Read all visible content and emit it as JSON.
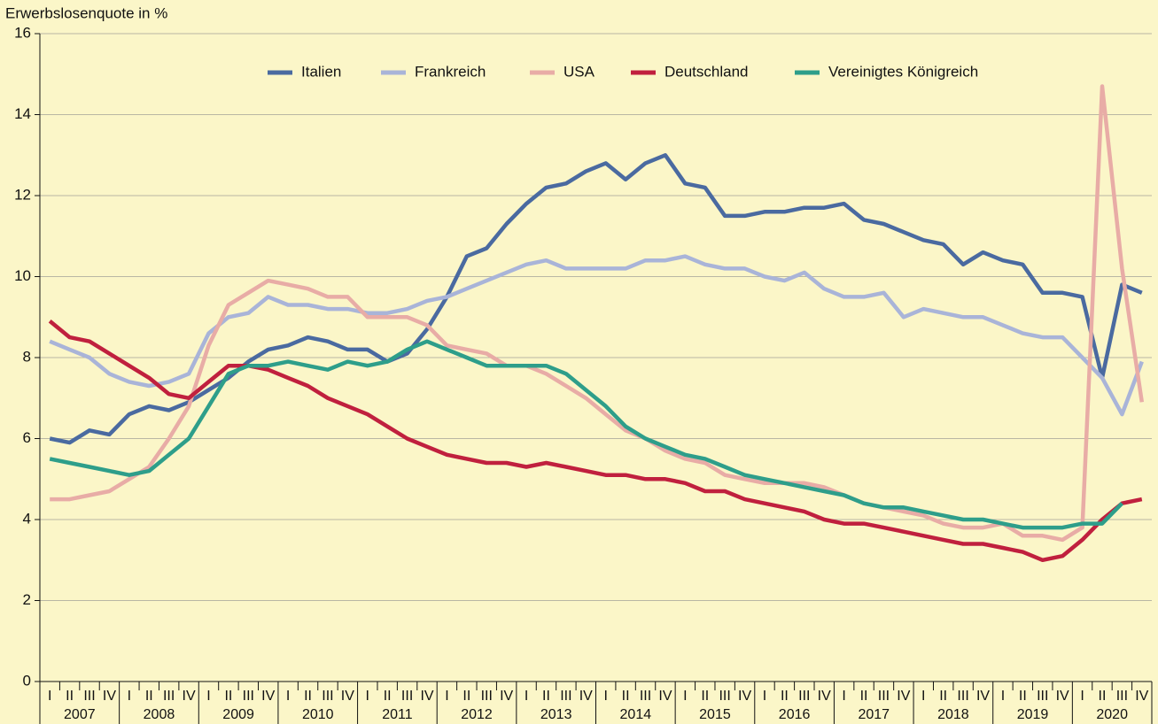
{
  "chart_data": {
    "type": "line",
    "y_label": "Erwerbslosenquote in %",
    "categories": [
      "I",
      "II",
      "III",
      "IV",
      "I",
      "II",
      "III",
      "IV",
      "I",
      "II",
      "III",
      "IV",
      "I",
      "II",
      "III",
      "IV",
      "I",
      "II",
      "III",
      "IV",
      "I",
      "II",
      "III",
      "IV",
      "I",
      "II",
      "III",
      "IV",
      "I",
      "II",
      "III",
      "IV",
      "I",
      "II",
      "III",
      "IV",
      "I",
      "II",
      "III",
      "IV",
      "I",
      "II",
      "III",
      "IV",
      "I",
      "II",
      "III",
      "IV",
      "I",
      "II",
      "III",
      "IV",
      "I",
      "II",
      "III",
      "IV"
    ],
    "years": [
      "2007",
      "2008",
      "2009",
      "2010",
      "2011",
      "2012",
      "2013",
      "2014",
      "2015",
      "2016",
      "2017",
      "2018",
      "2019",
      "2020"
    ],
    "ylim": [
      0,
      16
    ],
    "yticks": [
      0,
      2,
      4,
      6,
      8,
      10,
      12,
      14,
      16
    ],
    "grid": true,
    "series": [
      {
        "name": "Italien",
        "color": "#4a6aa0",
        "values": [
          6.0,
          5.9,
          6.2,
          6.1,
          6.6,
          6.8,
          6.7,
          6.9,
          7.2,
          7.5,
          7.9,
          8.2,
          8.3,
          8.5,
          8.4,
          8.2,
          8.2,
          7.9,
          8.1,
          8.7,
          9.5,
          10.5,
          10.7,
          11.3,
          11.8,
          12.2,
          12.3,
          12.6,
          12.8,
          12.4,
          12.8,
          13.0,
          12.3,
          12.2,
          11.5,
          11.5,
          11.6,
          11.6,
          11.7,
          11.7,
          11.8,
          11.4,
          11.3,
          11.1,
          10.9,
          10.8,
          10.3,
          10.6,
          10.4,
          10.3,
          9.6,
          9.6,
          9.5,
          7.5,
          9.8,
          9.6
        ]
      },
      {
        "name": "Frankreich",
        "color": "#a9b4d8",
        "values": [
          8.4,
          8.2,
          8.0,
          7.6,
          7.4,
          7.3,
          7.4,
          7.6,
          8.6,
          9.0,
          9.1,
          9.5,
          9.3,
          9.3,
          9.2,
          9.2,
          9.1,
          9.1,
          9.2,
          9.4,
          9.5,
          9.7,
          9.9,
          10.1,
          10.3,
          10.4,
          10.2,
          10.2,
          10.2,
          10.2,
          10.4,
          10.4,
          10.5,
          10.3,
          10.2,
          10.2,
          10.0,
          9.9,
          10.1,
          9.7,
          9.5,
          9.5,
          9.6,
          9.0,
          9.2,
          9.1,
          9.0,
          9.0,
          8.8,
          8.6,
          8.5,
          8.5,
          8.0,
          7.5,
          6.6,
          7.9
        ]
      },
      {
        "name": "USA",
        "color": "#e8aca6",
        "values": [
          4.5,
          4.5,
          4.6,
          4.7,
          5.0,
          5.3,
          6.0,
          6.8,
          8.3,
          9.3,
          9.6,
          9.9,
          9.8,
          9.7,
          9.5,
          9.5,
          9.0,
          9.0,
          9.0,
          8.8,
          8.3,
          8.2,
          8.1,
          7.8,
          7.8,
          7.6,
          7.3,
          7.0,
          6.6,
          6.2,
          6.0,
          5.7,
          5.5,
          5.4,
          5.1,
          5.0,
          4.9,
          4.9,
          4.9,
          4.8,
          4.6,
          4.4,
          4.3,
          4.2,
          4.1,
          3.9,
          3.8,
          3.8,
          3.9,
          3.6,
          3.6,
          3.5,
          3.8,
          14.7,
          10.2,
          6.9
        ]
      },
      {
        "name": "Deutschland",
        "color": "#c0203e",
        "values": [
          8.9,
          8.5,
          8.4,
          8.1,
          7.8,
          7.5,
          7.1,
          7.0,
          7.4,
          7.8,
          7.8,
          7.7,
          7.5,
          7.3,
          7.0,
          6.8,
          6.6,
          6.3,
          6.0,
          5.8,
          5.6,
          5.5,
          5.4,
          5.4,
          5.3,
          5.4,
          5.3,
          5.2,
          5.1,
          5.1,
          5.0,
          5.0,
          4.9,
          4.7,
          4.7,
          4.5,
          4.4,
          4.3,
          4.2,
          4.0,
          3.9,
          3.9,
          3.8,
          3.7,
          3.6,
          3.5,
          3.4,
          3.4,
          3.3,
          3.2,
          3.0,
          3.1,
          3.5,
          4.0,
          4.4,
          4.5
        ]
      },
      {
        "name": "Vereinigtes Königreich",
        "color": "#2e9e8a",
        "values": [
          5.5,
          5.4,
          5.3,
          5.2,
          5.1,
          5.2,
          5.6,
          6.0,
          6.8,
          7.6,
          7.8,
          7.8,
          7.9,
          7.8,
          7.7,
          7.9,
          7.8,
          7.9,
          8.2,
          8.4,
          8.2,
          8.0,
          7.8,
          7.8,
          7.8,
          7.8,
          7.6,
          7.2,
          6.8,
          6.3,
          6.0,
          5.8,
          5.6,
          5.5,
          5.3,
          5.1,
          5.0,
          4.9,
          4.8,
          4.7,
          4.6,
          4.4,
          4.3,
          4.3,
          4.2,
          4.1,
          4.0,
          4.0,
          3.9,
          3.8,
          3.8,
          3.8,
          3.9,
          3.9,
          4.4,
          null
        ]
      }
    ]
  }
}
